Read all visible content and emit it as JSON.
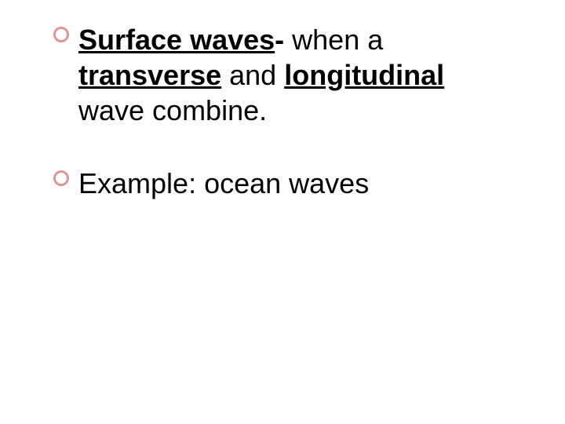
{
  "slide": {
    "background_color": "#ffffff",
    "text_color": "#000000",
    "bullet_color": "#d99694",
    "font_size_pt": 36,
    "font_family": "Arial",
    "bullets": [
      {
        "segments": [
          {
            "text": "Surface waves",
            "bold": true,
            "underline": true
          },
          {
            "text": "-",
            "bold": true,
            "underline": false
          },
          {
            "text": " when a ",
            "bold": false,
            "underline": false
          },
          {
            "text": "transverse",
            "bold": true,
            "underline": true
          },
          {
            "text": " and ",
            "bold": false,
            "underline": false
          },
          {
            "text": "longitudinal",
            "bold": true,
            "underline": true
          },
          {
            "text": " wave combine.",
            "bold": false,
            "underline": false
          }
        ]
      },
      {
        "segments": [
          {
            "text": "Example: ocean waves",
            "bold": false,
            "underline": false
          }
        ]
      }
    ]
  }
}
